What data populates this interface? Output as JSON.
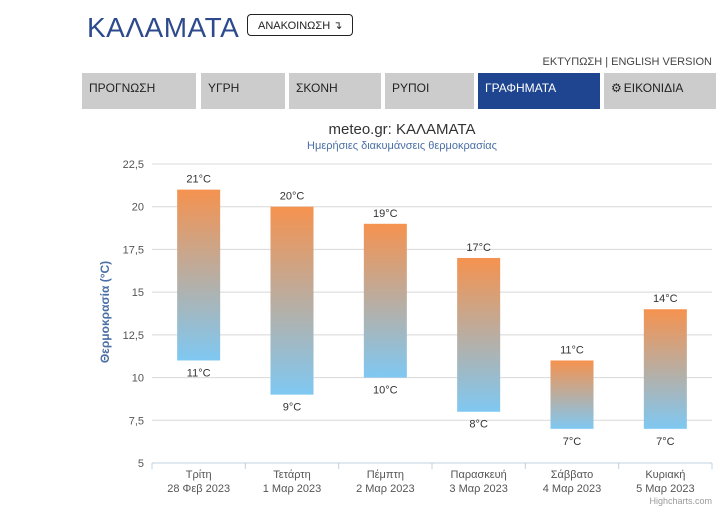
{
  "header": {
    "city": "ΚΑΛΑΜΑΤΑ",
    "announce_label": "ΑΝΑΚΟΙΝΩΣΗ",
    "announce_icon": "arrow-down-icon",
    "print_link": "ΕΚΤΥΠΩΣΗ",
    "separator": " | ",
    "english_link": "ENGLISH VERSION"
  },
  "tabs": [
    {
      "label": "ΠΡΟΓΝΩΣΗ"
    },
    {
      "label": "ΥΓΡΗ"
    },
    {
      "label": "ΣΚΟΝΗ"
    },
    {
      "label": "ΡΥΠΟΙ"
    },
    {
      "label": "ΓΡΑΦΗΜΑΤΑ"
    },
    {
      "label": "ΕΙΚΟΝΙΔΙΑ",
      "icon": "gear-icon"
    }
  ],
  "credits": "Highcharts.com",
  "colors": {
    "accent": "#1f4591",
    "title": "#333333",
    "subtitle": "#4a6fa5",
    "bar_warm": "#f5924f",
    "bar_cool": "#7fc8f2"
  },
  "chart_data": {
    "type": "columnrange",
    "title": "meteo.gr: ΚΑΛΑΜΑΤΑ",
    "subtitle": "Ημερήσιες διακυμάνσεις θερμοκρασίας",
    "ylabel": "Θερμοκρασία (°C)",
    "ylim": [
      5,
      22.5
    ],
    "yticks": [
      "5",
      "7,5",
      "10",
      "12,5",
      "15",
      "17,5",
      "20",
      "22,5"
    ],
    "ytick_values": [
      5,
      7.5,
      10,
      12.5,
      15,
      17.5,
      20,
      22.5
    ],
    "grid": true,
    "categories": [
      {
        "day": "Τρίτη",
        "date": "28 Φεβ 2023"
      },
      {
        "day": "Τετάρτη",
        "date": "1 Μαρ 2023"
      },
      {
        "day": "Πέμπτη",
        "date": "2 Μαρ 2023"
      },
      {
        "day": "Παρασκευή",
        "date": "3 Μαρ 2023"
      },
      {
        "day": "Σάββατο",
        "date": "4 Μαρ 2023"
      },
      {
        "day": "Κυριακή",
        "date": "5 Μαρ 2023"
      }
    ],
    "low": [
      11,
      9,
      10,
      8,
      7,
      7
    ],
    "high": [
      21,
      20,
      19,
      17,
      11,
      14
    ],
    "low_labels": [
      "11°C",
      "9°C",
      "10°C",
      "8°C",
      "7°C",
      "7°C"
    ],
    "high_labels": [
      "21°C",
      "20°C",
      "19°C",
      "17°C",
      "11°C",
      "14°C"
    ]
  }
}
